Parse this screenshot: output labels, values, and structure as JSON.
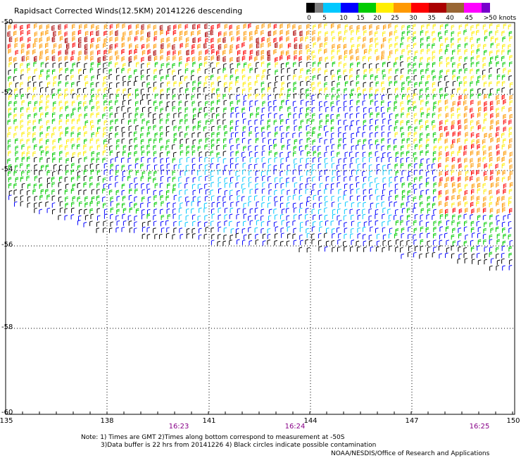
{
  "title": "Rapidsact Corrected Winds(12.5KM) 20141226 descending",
  "scale": {
    "labels": [
      "0",
      "5",
      "10",
      "15",
      "20",
      "25",
      "30",
      "35",
      "40",
      "45",
      ">50 knots"
    ],
    "colors": [
      "#000000",
      "#7f7f7f",
      "#00c8ff",
      "#0000ff",
      "#00cc00",
      "#ffee00",
      "#ff9900",
      "#ff0000",
      "#aa0000",
      "#996633",
      "#ff00ff",
      "#7700cc"
    ]
  },
  "lat_labels": [
    "-50",
    "-52",
    "-54",
    "-56",
    "-58",
    "-60"
  ],
  "lon_labels": [
    "135",
    "138",
    "141",
    "144",
    "147",
    "150"
  ],
  "time_labels": [
    "16:23",
    "16:24",
    "16:25"
  ],
  "notes": {
    "line1": "Note: 1) Times are GMT 2)Times along bottom correspond to measurement at -50S",
    "line2": "3)Data buffer is 22 hrs from 20141226 4) Black circles indicate possible contamination"
  },
  "credit": "NOAA/NESDIS/Office of Research and Applications"
}
